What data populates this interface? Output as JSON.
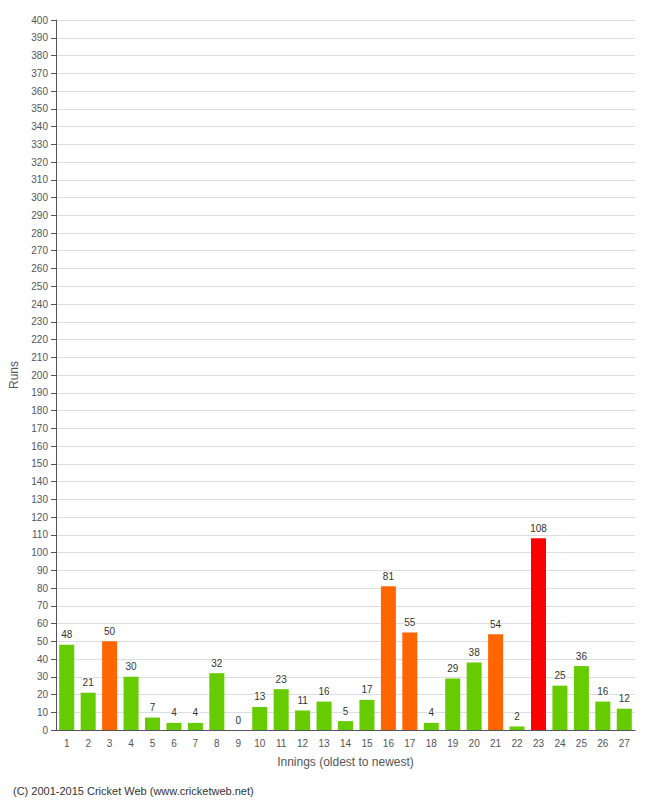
{
  "chart_data": {
    "type": "bar",
    "categories": [
      "1",
      "2",
      "3",
      "4",
      "5",
      "6",
      "7",
      "8",
      "9",
      "10",
      "11",
      "12",
      "13",
      "14",
      "15",
      "16",
      "17",
      "18",
      "19",
      "20",
      "21",
      "22",
      "23",
      "24",
      "25",
      "26",
      "27"
    ],
    "values": [
      48,
      21,
      50,
      30,
      7,
      4,
      4,
      32,
      0,
      13,
      23,
      11,
      16,
      5,
      17,
      81,
      55,
      4,
      29,
      38,
      54,
      2,
      108,
      25,
      36,
      16,
      12
    ],
    "colors": [
      "#66cc00",
      "#66cc00",
      "#ff6600",
      "#66cc00",
      "#66cc00",
      "#66cc00",
      "#66cc00",
      "#66cc00",
      "#66cc00",
      "#66cc00",
      "#66cc00",
      "#66cc00",
      "#66cc00",
      "#66cc00",
      "#66cc00",
      "#ff6600",
      "#ff6600",
      "#66cc00",
      "#66cc00",
      "#66cc00",
      "#ff6600",
      "#66cc00",
      "#ff0000",
      "#66cc00",
      "#66cc00",
      "#66cc00",
      "#66cc00"
    ],
    "xlabel": "Innings (oldest to newest)",
    "ylabel": "Runs",
    "ylim": [
      0,
      400
    ],
    "yticks": [
      0,
      10,
      20,
      30,
      40,
      50,
      60,
      70,
      80,
      90,
      100,
      110,
      120,
      130,
      140,
      150,
      160,
      170,
      180,
      190,
      200,
      210,
      220,
      230,
      240,
      250,
      260,
      270,
      280,
      290,
      300,
      310,
      320,
      330,
      340,
      350,
      360,
      370,
      380,
      390,
      400
    ],
    "grid": true,
    "data_labels": true,
    "annotations": [
      "(C) 2001-2015 Cricket Web (www.cricketweb.net)"
    ]
  }
}
